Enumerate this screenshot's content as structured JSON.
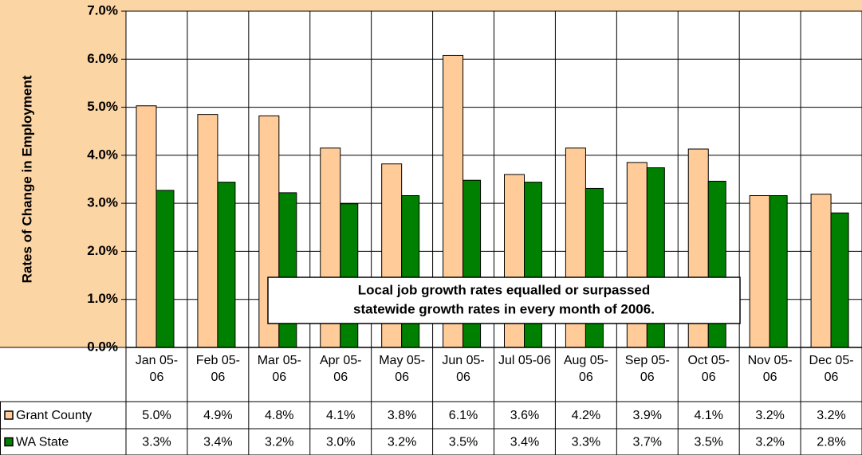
{
  "chart_data": {
    "type": "bar",
    "y_label": "Rates of Change in Employment",
    "annotation": [
      "Local job growth rates equalled or surpassed",
      "statewide growth rates in every month of 2006."
    ],
    "categories": [
      "Jan 05-06",
      "Feb 05-06",
      "Mar 05-06",
      "Apr 05-06",
      "May 05-06",
      "Jun 05-06",
      "Jul 05-06",
      "Aug 05-06",
      "Sep 05-06",
      "Oct 05-06",
      "Nov 05-06",
      "Dec 05-06"
    ],
    "series": [
      {
        "name": "Grant County",
        "color": "#ffcc99",
        "values": [
          5.03,
          4.85,
          4.82,
          4.15,
          3.82,
          6.08,
          3.6,
          4.15,
          3.85,
          4.13,
          3.16,
          3.19
        ],
        "value_labels": [
          "5.0%",
          "4.9%",
          "4.8%",
          "4.1%",
          "3.8%",
          "6.1%",
          "3.6%",
          "4.2%",
          "3.9%",
          "4.1%",
          "3.2%",
          "3.2%"
        ]
      },
      {
        "name": "WA State",
        "color": "#008000",
        "values": [
          3.27,
          3.44,
          3.22,
          2.99,
          3.16,
          3.48,
          3.44,
          3.31,
          3.74,
          3.46,
          3.16,
          2.8
        ],
        "value_labels": [
          "3.3%",
          "3.4%",
          "3.2%",
          "3.0%",
          "3.2%",
          "3.5%",
          "3.4%",
          "3.3%",
          "3.7%",
          "3.5%",
          "3.2%",
          "2.8%"
        ]
      }
    ],
    "ylim": [
      0,
      7
    ],
    "yticks": [
      {
        "value": 0,
        "label": "0.0%"
      },
      {
        "value": 1,
        "label": "1.0%"
      },
      {
        "value": 2,
        "label": "2.0%"
      },
      {
        "value": 3,
        "label": "3.0%"
      },
      {
        "value": 4,
        "label": "4.0%"
      },
      {
        "value": 5,
        "label": "5.0%"
      },
      {
        "value": 6,
        "label": "6.0%"
      },
      {
        "value": 7,
        "label": "7.0%"
      }
    ],
    "grid": true
  }
}
